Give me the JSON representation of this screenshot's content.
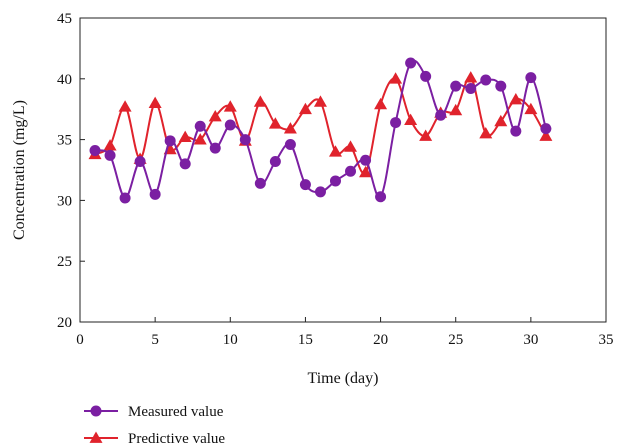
{
  "chart_data": {
    "type": "line",
    "xlabel": "Time (day)",
    "ylabel": "Concentration (mg/L)",
    "xlim": [
      0,
      35
    ],
    "ylim": [
      20,
      45
    ],
    "xticks": [
      0,
      5,
      10,
      15,
      20,
      25,
      30,
      35
    ],
    "yticks": [
      20,
      25,
      30,
      35,
      40,
      45
    ],
    "grid": false,
    "legend_position": "bottom-left, below plot",
    "x": [
      1,
      2,
      3,
      4,
      5,
      6,
      7,
      8,
      9,
      10,
      11,
      12,
      13,
      14,
      15,
      16,
      17,
      18,
      19,
      20,
      21,
      22,
      23,
      24,
      25,
      26,
      27,
      28,
      29,
      30,
      31
    ],
    "series": [
      {
        "name": "Measured value",
        "color": "#7B1FA2",
        "marker": "circle",
        "values": [
          34.1,
          33.7,
          30.2,
          33.2,
          30.5,
          34.9,
          33.0,
          36.1,
          34.3,
          36.2,
          35.0,
          31.4,
          33.2,
          34.6,
          31.3,
          30.7,
          31.6,
          32.4,
          33.3,
          30.3,
          36.4,
          41.3,
          40.2,
          37.0,
          39.4,
          39.2,
          39.9,
          39.4,
          35.7,
          40.1,
          35.9
        ]
      },
      {
        "name": "Predictive value",
        "color": "#E0232C",
        "marker": "triangle",
        "values": [
          33.8,
          34.5,
          37.7,
          33.4,
          38.0,
          34.2,
          35.2,
          35.0,
          36.9,
          37.7,
          34.9,
          38.1,
          36.3,
          35.9,
          37.5,
          38.1,
          34.0,
          34.4,
          32.3,
          37.9,
          40.0,
          36.6,
          35.3,
          37.2,
          37.4,
          40.1,
          35.5,
          36.5,
          38.3,
          37.5,
          35.3
        ]
      }
    ]
  }
}
